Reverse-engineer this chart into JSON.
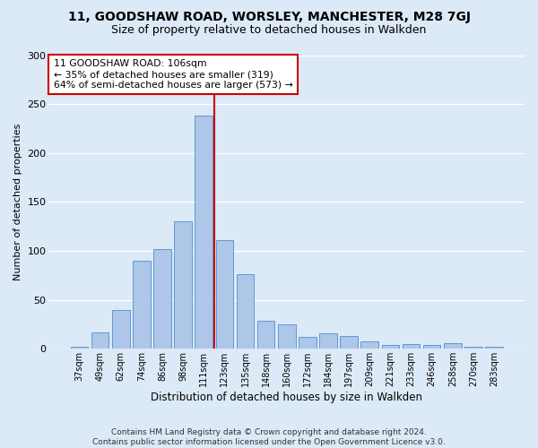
{
  "title1": "11, GOODSHAW ROAD, WORSLEY, MANCHESTER, M28 7GJ",
  "title2": "Size of property relative to detached houses in Walkden",
  "xlabel": "Distribution of detached houses by size in Walkden",
  "ylabel": "Number of detached properties",
  "footnote": "Contains HM Land Registry data © Crown copyright and database right 2024.\nContains public sector information licensed under the Open Government Licence v3.0.",
  "bar_labels": [
    "37sqm",
    "49sqm",
    "62sqm",
    "74sqm",
    "86sqm",
    "98sqm",
    "111sqm",
    "123sqm",
    "135sqm",
    "148sqm",
    "160sqm",
    "172sqm",
    "184sqm",
    "197sqm",
    "209sqm",
    "221sqm",
    "233sqm",
    "246sqm",
    "258sqm",
    "270sqm",
    "283sqm"
  ],
  "bar_values": [
    2,
    17,
    40,
    90,
    102,
    130,
    238,
    111,
    76,
    29,
    25,
    12,
    16,
    13,
    8,
    4,
    5,
    4,
    6,
    2,
    2
  ],
  "bar_color": "#aec6e8",
  "bar_edge_color": "#5b9bd5",
  "vline_x": 6.5,
  "vline_color": "#cc0000",
  "annotation_text": "11 GOODSHAW ROAD: 106sqm\n← 35% of detached houses are smaller (319)\n64% of semi-detached houses are larger (573) →",
  "annotation_box_color": "#ffffff",
  "annotation_box_edge": "#cc0000",
  "ylim": [
    0,
    300
  ],
  "yticks": [
    0,
    50,
    100,
    150,
    200,
    250,
    300
  ],
  "background_color": "#dce9f7",
  "grid_color": "#ffffff"
}
